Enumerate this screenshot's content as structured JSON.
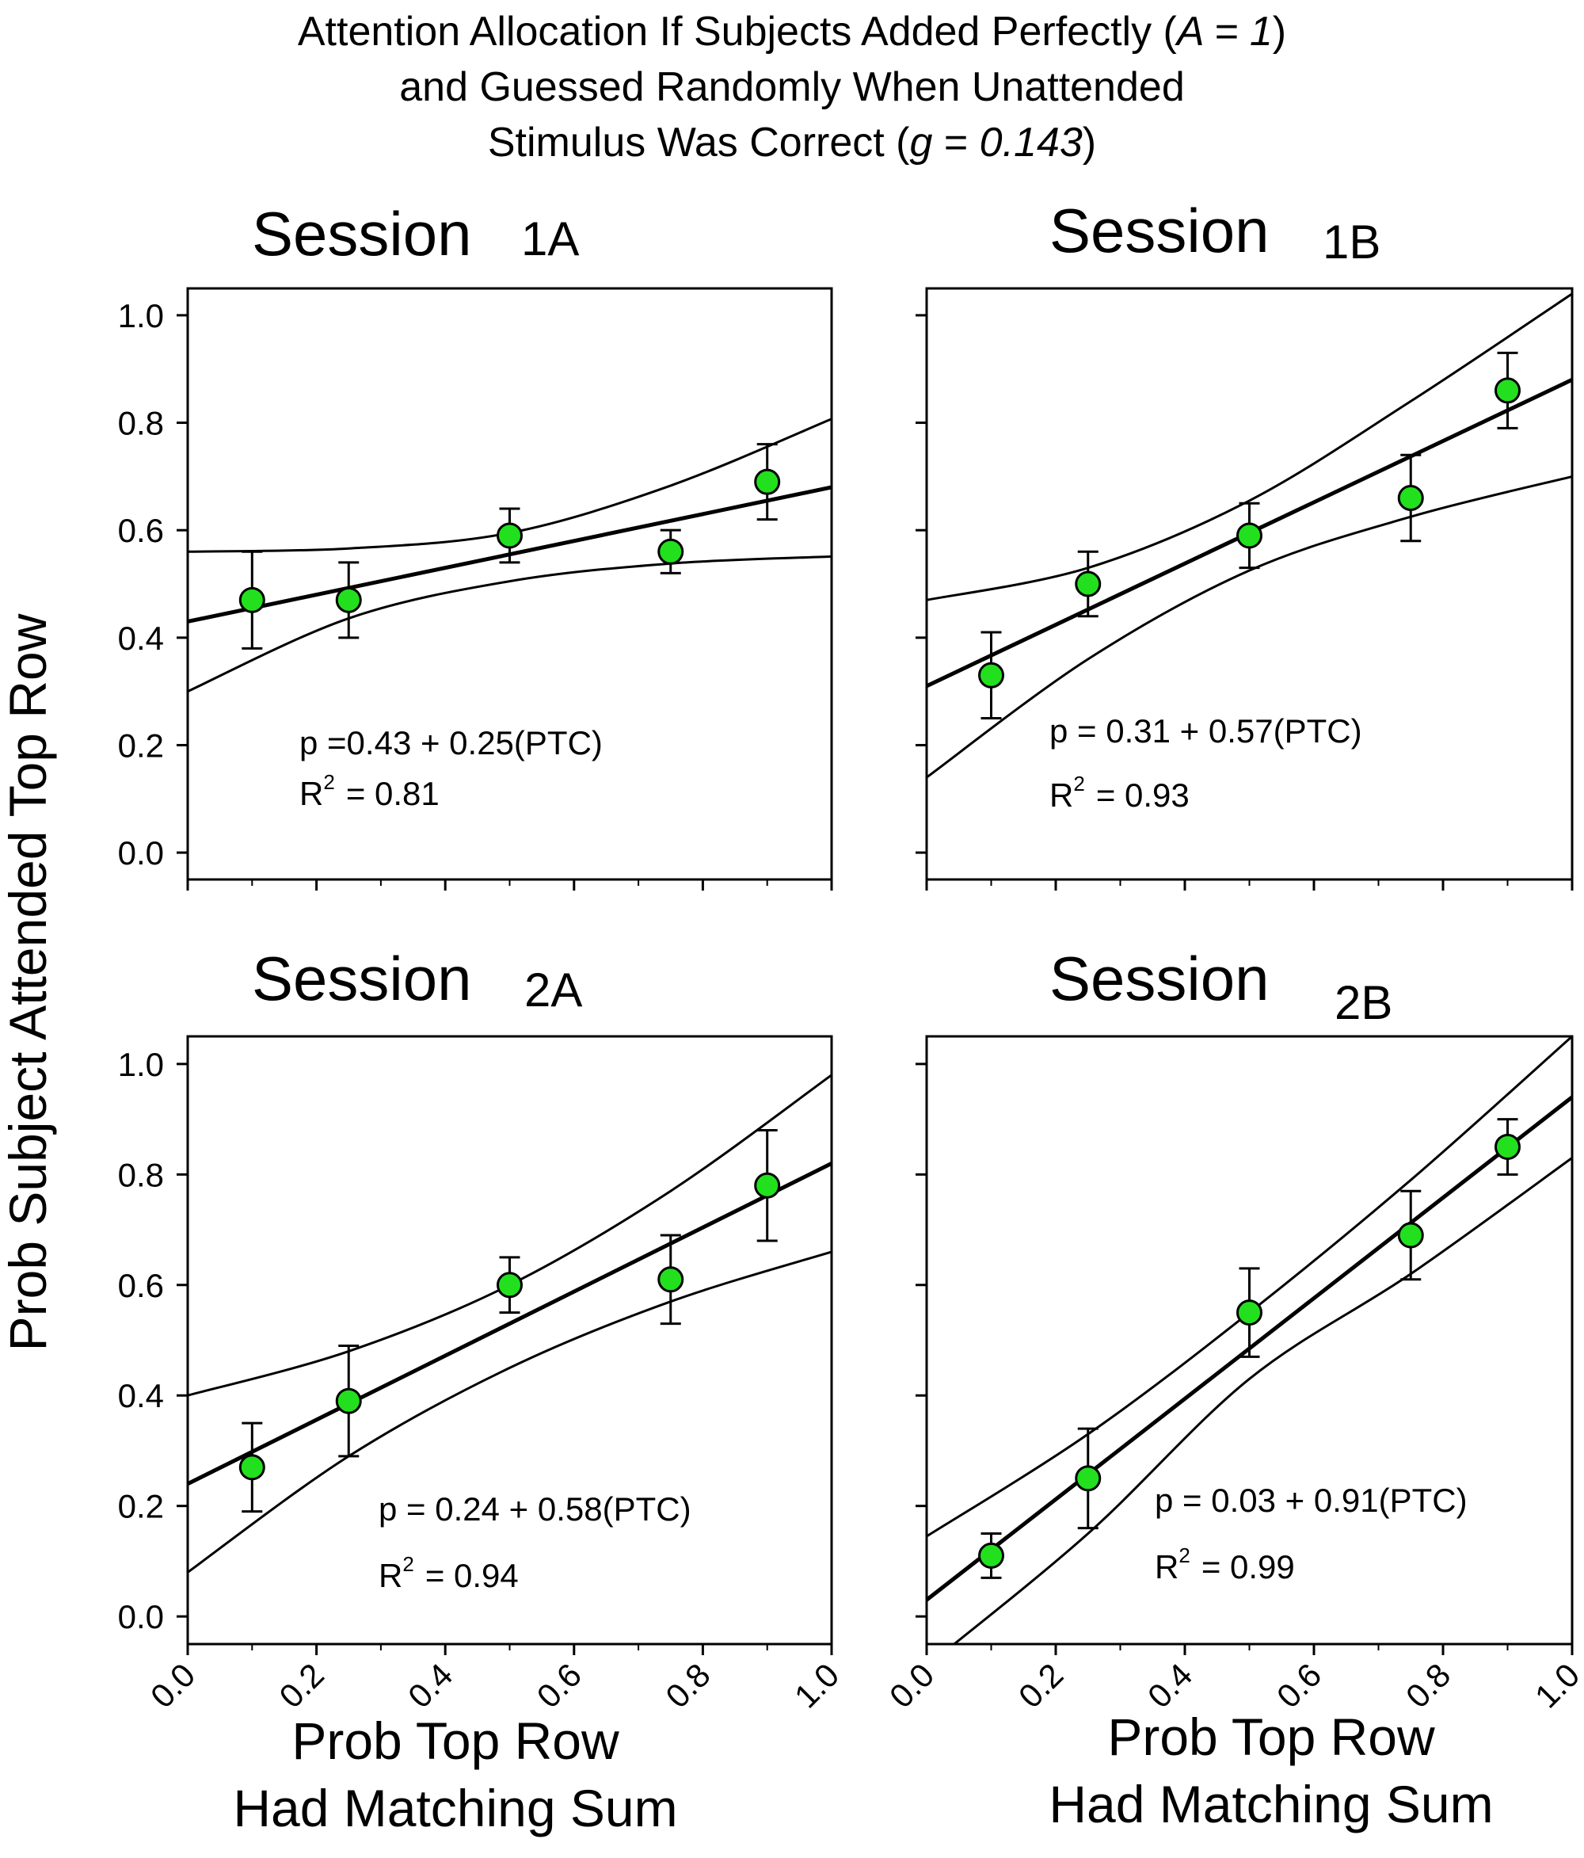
{
  "figure_title": {
    "line1_pre": "Attention Allocation If Subjects Added Perfectly (",
    "line1_var": "A = 1",
    "line1_post": ")",
    "line2": "and Guessed Randomly When Unattended",
    "line3_pre": "Stimulus Was Correct (",
    "line3_var_g": "g",
    "line3_eq": " = ",
    "line3_val": "0.143",
    "line3_post": ")"
  },
  "shared_ylabel": "Prob Subject Attended Top Row",
  "shared_xlabel": {
    "line1": "Prob Top Row",
    "line2": "Had Matching Sum"
  },
  "colors": {
    "marker_fill": "#22e01e",
    "marker_edge": "#000000",
    "line": "#000000"
  },
  "chart_data": [
    {
      "type": "scatter",
      "title_word": "Session",
      "title_suffix": "1A",
      "x": [
        0.1,
        0.25,
        0.5,
        0.75,
        0.9
      ],
      "y": [
        0.47,
        0.47,
        0.59,
        0.56,
        0.69
      ],
      "err_low": [
        0.38,
        0.4,
        0.54,
        0.52,
        0.62
      ],
      "err_high": [
        0.56,
        0.54,
        0.64,
        0.6,
        0.76
      ],
      "fit": {
        "intercept": 0.43,
        "slope": 0.25
      },
      "ci_upper": [
        [
          0.0,
          0.56
        ],
        [
          0.25,
          0.566
        ],
        [
          0.5,
          0.595
        ],
        [
          0.75,
          0.683
        ],
        [
          1.0,
          0.807
        ]
      ],
      "ci_lower": [
        [
          0.0,
          0.3
        ],
        [
          0.25,
          0.436
        ],
        [
          0.5,
          0.505
        ],
        [
          0.75,
          0.538
        ],
        [
          1.0,
          0.551
        ]
      ],
      "equation": "p =0.43 + 0.25(PTC)",
      "r2_label": "R",
      "r2_sup": "2",
      "r2_value": "= 0.81",
      "xlim": [
        0.0,
        1.0
      ],
      "ylim": [
        -0.05,
        1.05
      ],
      "xticks": [
        "0.0",
        "0.2",
        "0.4",
        "0.6",
        "0.8",
        "1.0"
      ],
      "yticks": [
        "0.0",
        "0.2",
        "0.4",
        "0.6",
        "0.8",
        "1.0"
      ]
    },
    {
      "type": "scatter",
      "title_word": "Session",
      "title_suffix": "1B",
      "x": [
        0.1,
        0.25,
        0.5,
        0.75,
        0.9
      ],
      "y": [
        0.33,
        0.5,
        0.59,
        0.66,
        0.86
      ],
      "err_low": [
        0.25,
        0.44,
        0.53,
        0.58,
        0.79
      ],
      "err_high": [
        0.41,
        0.56,
        0.65,
        0.74,
        0.93
      ],
      "fit": {
        "intercept": 0.31,
        "slope": 0.57
      },
      "ci_upper": [
        [
          0.0,
          0.47
        ],
        [
          0.25,
          0.53
        ],
        [
          0.5,
          0.655
        ],
        [
          0.75,
          0.84
        ],
        [
          1.0,
          1.04
        ]
      ],
      "ci_lower": [
        [
          0.0,
          0.14
        ],
        [
          0.25,
          0.36
        ],
        [
          0.5,
          0.525
        ],
        [
          0.75,
          0.625
        ],
        [
          1.0,
          0.7
        ]
      ],
      "equation": "p = 0.31 + 0.57(PTC)",
      "r2_label": "R",
      "r2_sup": "2",
      "r2_value": "= 0.93",
      "xlim": [
        0.0,
        1.0
      ],
      "ylim": [
        -0.05,
        1.05
      ],
      "xticks": [
        "0.0",
        "0.2",
        "0.4",
        "0.6",
        "0.8",
        "1.0"
      ],
      "yticks": [
        "0.0",
        "0.2",
        "0.4",
        "0.6",
        "0.8",
        "1.0"
      ]
    },
    {
      "type": "scatter",
      "title_word": "Session",
      "title_suffix": "2A",
      "x": [
        0.1,
        0.25,
        0.5,
        0.75,
        0.9
      ],
      "y": [
        0.27,
        0.39,
        0.6,
        0.61,
        0.78
      ],
      "err_low": [
        0.19,
        0.29,
        0.55,
        0.53,
        0.68
      ],
      "err_high": [
        0.35,
        0.49,
        0.65,
        0.69,
        0.88
      ],
      "fit": {
        "intercept": 0.24,
        "slope": 0.58
      },
      "ci_upper": [
        [
          0.0,
          0.4
        ],
        [
          0.25,
          0.48
        ],
        [
          0.5,
          0.6
        ],
        [
          0.75,
          0.77
        ],
        [
          1.0,
          0.98
        ]
      ],
      "ci_lower": [
        [
          0.0,
          0.08
        ],
        [
          0.25,
          0.29
        ],
        [
          0.5,
          0.45
        ],
        [
          0.75,
          0.57
        ],
        [
          1.0,
          0.66
        ]
      ],
      "equation": "p = 0.24 + 0.58(PTC)",
      "r2_label": "R",
      "r2_sup": "2",
      "r2_value": "= 0.94",
      "xlim": [
        0.0,
        1.0
      ],
      "ylim": [
        -0.05,
        1.05
      ],
      "xticks": [
        "0.0",
        "0.2",
        "0.4",
        "0.6",
        "0.8",
        "1.0"
      ],
      "yticks": [
        "0.0",
        "0.2",
        "0.4",
        "0.6",
        "0.8",
        "1.0"
      ]
    },
    {
      "type": "scatter",
      "title_word": "Session",
      "title_suffix": "2B",
      "x": [
        0.1,
        0.25,
        0.5,
        0.75,
        0.9
      ],
      "y": [
        0.11,
        0.25,
        0.55,
        0.69,
        0.85
      ],
      "err_low": [
        0.07,
        0.16,
        0.47,
        0.61,
        0.8
      ],
      "err_high": [
        0.15,
        0.34,
        0.63,
        0.77,
        0.9
      ],
      "fit": {
        "intercept": 0.03,
        "slope": 0.91
      },
      "ci_upper": [
        [
          0.0,
          0.145
        ],
        [
          0.25,
          0.33
        ],
        [
          0.5,
          0.55
        ],
        [
          0.75,
          0.79
        ],
        [
          1.0,
          1.05
        ]
      ],
      "ci_lower": [
        [
          0.0,
          -0.09
        ],
        [
          0.25,
          0.15
        ],
        [
          0.5,
          0.43
        ],
        [
          0.75,
          0.62
        ],
        [
          1.0,
          0.83
        ]
      ],
      "equation": "p = 0.03 + 0.91(PTC)",
      "r2_label": "R",
      "r2_sup": "2",
      "r2_value": "= 0.99",
      "xlim": [
        0.0,
        1.0
      ],
      "ylim": [
        -0.05,
        1.05
      ],
      "xticks": [
        "0.0",
        "0.2",
        "0.4",
        "0.6",
        "0.8",
        "1.0"
      ],
      "yticks": [
        "0.0",
        "0.2",
        "0.4",
        "0.6",
        "0.8",
        "1.0"
      ]
    }
  ]
}
